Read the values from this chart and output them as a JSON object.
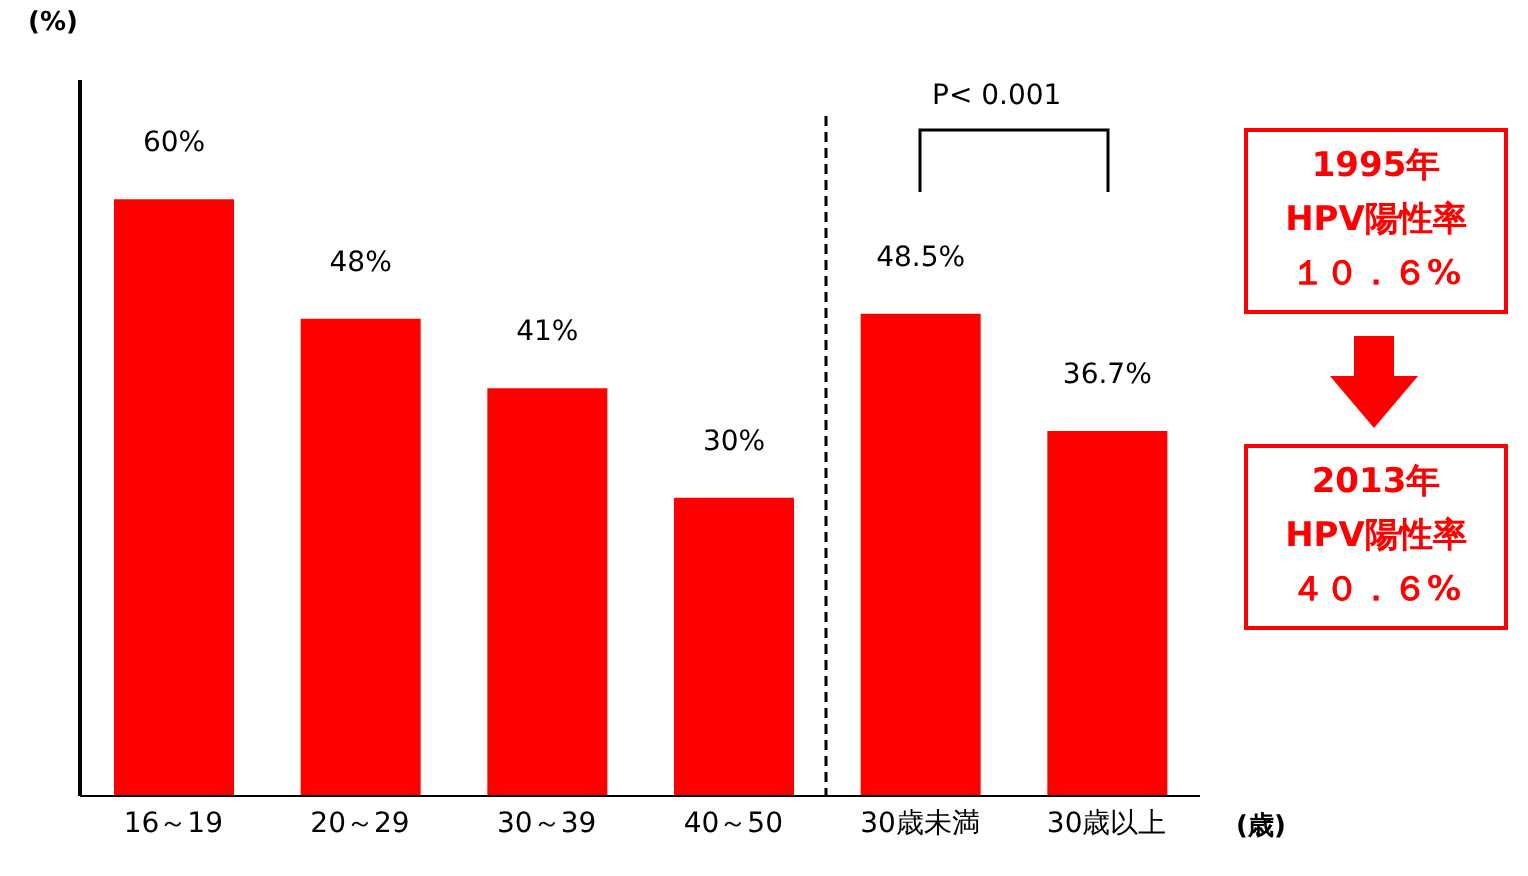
{
  "chart_data": {
    "type": "bar",
    "ylabel": "(%)",
    "xlabel": "(歳)",
    "categories": [
      "16～19",
      "20～29",
      "30～39",
      "40～50",
      "30歳未満",
      "30歳以上"
    ],
    "values": [
      60,
      48,
      41,
      30,
      48.5,
      36.7
    ],
    "value_labels": [
      "60%",
      "48%",
      "41%",
      "30%",
      "48.5%",
      "36.7%"
    ],
    "color": "#ff0000",
    "ylim": [
      0,
      72
    ],
    "tick_labels": "x",
    "grid": false,
    "legend": false,
    "annotations": [
      "P< 0.001",
      "1995年",
      "HPV陽性率",
      "１０．６%",
      "2013年",
      "HPV陽性率",
      "４０．６%"
    ]
  }
}
